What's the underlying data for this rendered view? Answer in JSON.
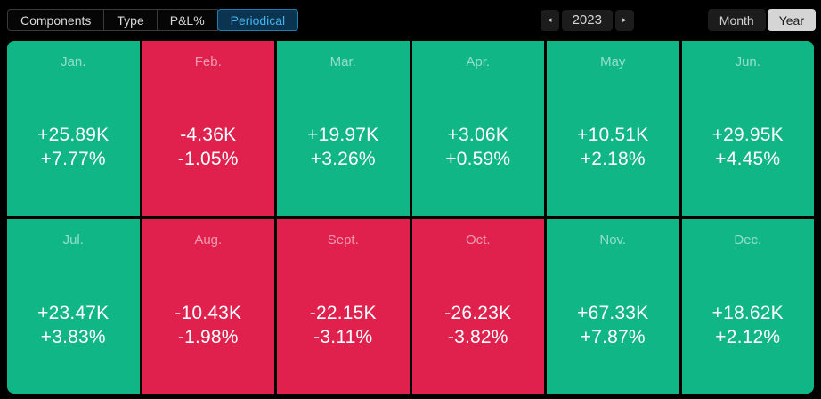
{
  "toolbar": {
    "tabs": [
      {
        "id": "components",
        "label": "Components",
        "selected": false
      },
      {
        "id": "type",
        "label": "Type",
        "selected": false
      },
      {
        "id": "pnl",
        "label": "P&L%",
        "selected": false
      },
      {
        "id": "periodical",
        "label": "Periodical",
        "selected": true
      }
    ],
    "year_nav": {
      "prev_icon": "◂",
      "year": "2023",
      "next_icon": "▸"
    },
    "period_toggle": [
      {
        "id": "month",
        "label": "Month",
        "selected": false
      },
      {
        "id": "year",
        "label": "Year",
        "selected": true
      }
    ]
  },
  "colors": {
    "green": "#11b687",
    "red": "#e0214e",
    "selected_tab_bg": "#0b3450",
    "selected_tab_border": "#1d7eb3",
    "selected_tab_text": "#41b2f0",
    "toggle_selected_bg": "#d5d5d5"
  },
  "calendar": {
    "months": [
      {
        "label": "Jan.",
        "value": "+25.89K",
        "percent": "+7.77%",
        "positive": true
      },
      {
        "label": "Feb.",
        "value": "-4.36K",
        "percent": "-1.05%",
        "positive": false
      },
      {
        "label": "Mar.",
        "value": "+19.97K",
        "percent": "+3.26%",
        "positive": true
      },
      {
        "label": "Apr.",
        "value": "+3.06K",
        "percent": "+0.59%",
        "positive": true
      },
      {
        "label": "May",
        "value": "+10.51K",
        "percent": "+2.18%",
        "positive": true
      },
      {
        "label": "Jun.",
        "value": "+29.95K",
        "percent": "+4.45%",
        "positive": true
      },
      {
        "label": "Jul.",
        "value": "+23.47K",
        "percent": "+3.83%",
        "positive": true
      },
      {
        "label": "Aug.",
        "value": "-10.43K",
        "percent": "-1.98%",
        "positive": false
      },
      {
        "label": "Sept.",
        "value": "-22.15K",
        "percent": "-3.11%",
        "positive": false
      },
      {
        "label": "Oct.",
        "value": "-26.23K",
        "percent": "-3.82%",
        "positive": false
      },
      {
        "label": "Nov.",
        "value": "+67.33K",
        "percent": "+7.87%",
        "positive": true
      },
      {
        "label": "Dec.",
        "value": "+18.62K",
        "percent": "+2.12%",
        "positive": true
      }
    ]
  }
}
